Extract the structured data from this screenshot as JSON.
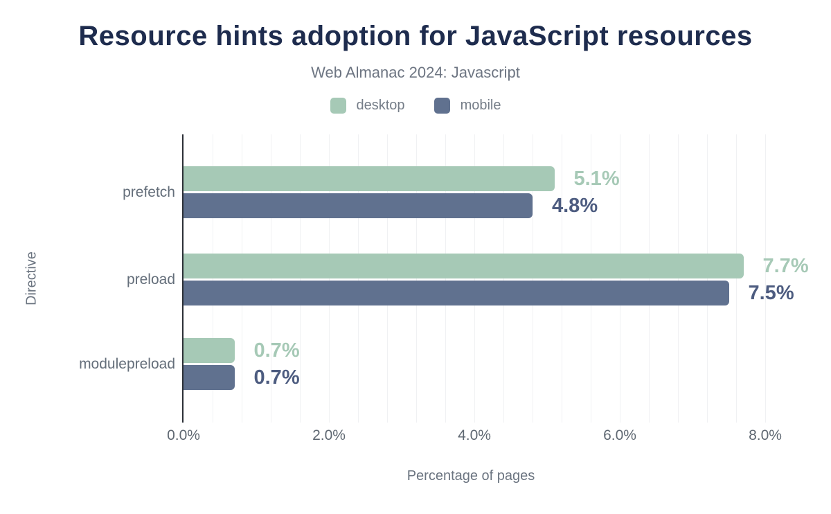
{
  "title": "Resource hints adoption for JavaScript resources",
  "subtitle": "Web Almanac 2024: Javascript",
  "legend": [
    {
      "label": "desktop",
      "color": "#a6c9b6"
    },
    {
      "label": "mobile",
      "color": "#60718f"
    }
  ],
  "chart_data": {
    "type": "bar",
    "orientation": "horizontal",
    "title": "Resource hints adoption for JavaScript resources",
    "subtitle": "Web Almanac 2024: Javascript",
    "categories": [
      "prefetch",
      "preload",
      "modulepreload"
    ],
    "series": [
      {
        "name": "desktop",
        "color": "#a6c9b6",
        "label_color": "#a6c9b6",
        "values": [
          5.1,
          7.7,
          0.7
        ],
        "labels": [
          "5.1%",
          "7.7%",
          "0.7%"
        ]
      },
      {
        "name": "mobile",
        "color": "#60718f",
        "label_color": "#4d5c80",
        "values": [
          4.8,
          7.5,
          0.7
        ],
        "labels": [
          "4.8%",
          "7.5%",
          "0.7%"
        ]
      }
    ],
    "xlabel": "Percentage of pages",
    "ylabel": "Directive",
    "xlim": [
      0,
      8.33
    ],
    "x_ticks": [
      {
        "label": "0.0%",
        "value": 0
      },
      {
        "label": "2.0%",
        "value": 2
      },
      {
        "label": "4.0%",
        "value": 4
      },
      {
        "label": "6.0%",
        "value": 6
      },
      {
        "label": "8.0%",
        "value": 8
      }
    ],
    "minor_gridline_step_pct": 0.4,
    "grid": "minor vertical gridlines, faint",
    "legend_position": "top center",
    "axis_line_color": "#2b2f36"
  }
}
